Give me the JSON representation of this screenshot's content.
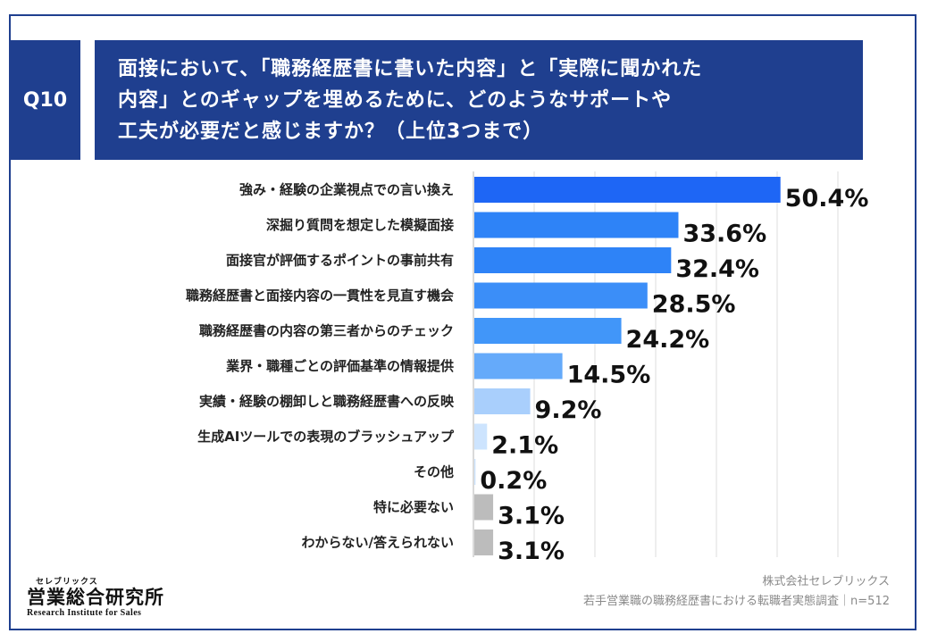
{
  "header": {
    "badge": "Q10",
    "question": "面接において、「職務経歴書に書いた内容」と「実際に聞かれた\n内容」とのギャップを埋めるために、どのようなサポートや\n工夫が必要だと感じますか？（上位3つまで）"
  },
  "chart_data": {
    "type": "bar",
    "orientation": "horizontal",
    "categories": [
      "強み・経験の企業視点での言い換え",
      "深掘り質問を想定した模擬面接",
      "面接官が評価するポイントの事前共有",
      "職務経歴書と面接内容の一貫性を見直す機会",
      "職務経歴書の内容の第三者からのチェック",
      "業界・職種ごとの評価基準の情報提供",
      "実績・経験の棚卸しと職務経歴書への反映",
      "生成AIツールでの表現のブラッシュアップ",
      "その他",
      "特に必要ない",
      "わからない/答えられない"
    ],
    "values": [
      50.4,
      33.6,
      32.4,
      28.5,
      24.2,
      14.5,
      9.2,
      2.1,
      0.2,
      3.1,
      3.1
    ],
    "value_labels": [
      "50.4%",
      "33.6%",
      "32.4%",
      "28.5%",
      "24.2%",
      "14.5%",
      "9.2%",
      "2.1%",
      "0.2%",
      "3.1%",
      "3.1%"
    ],
    "colors": [
      "#1e66f5",
      "#2e83f7",
      "#2e83f7",
      "#3b8ef8",
      "#4196f9",
      "#65aafa",
      "#a9cffc",
      "#cde4fe",
      "#cde4fe",
      "#bcbcbc",
      "#bcbcbc"
    ],
    "xlim": [
      0,
      60
    ],
    "grid": true,
    "legend": "none"
  },
  "footer": {
    "company": "株式会社セレブリックス",
    "survey": "若手営業職の職務経歴書における転職者実態調査｜n=512"
  },
  "logo": {
    "kana": "セレブリックス",
    "name": "営業総合研究所",
    "en": "Research Institute for Sales"
  }
}
